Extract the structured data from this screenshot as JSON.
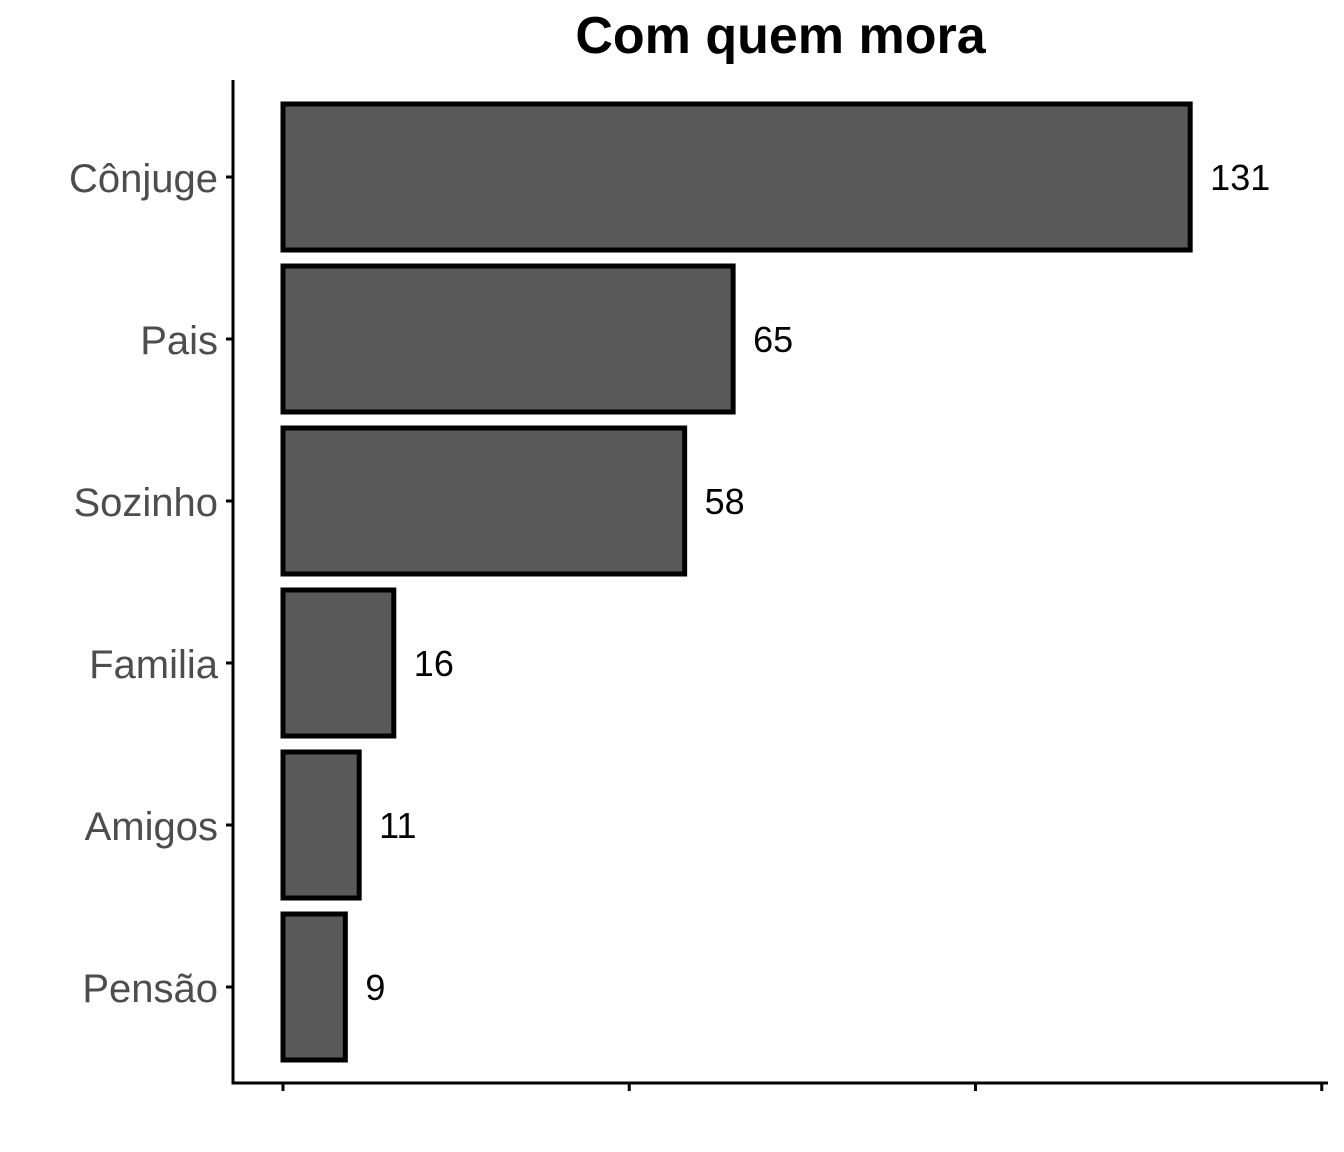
{
  "chart_data": {
    "type": "bar",
    "orientation": "horizontal",
    "title": "Com quem mora",
    "xlabel": "",
    "ylabel": "",
    "categories": [
      "Cônjuge",
      "Pais",
      "Sozinho",
      "Familia",
      "Amigos",
      "Pensão"
    ],
    "values": [
      131,
      65,
      58,
      16,
      11,
      9
    ],
    "xlim": [
      -7,
      151
    ],
    "grid": false,
    "legend": "none",
    "colors": {
      "bar_fill": "#595959",
      "bar_stroke": "#000000",
      "axis": "#000000",
      "category_text": "#4d4d4d",
      "value_text": "#000000"
    }
  }
}
